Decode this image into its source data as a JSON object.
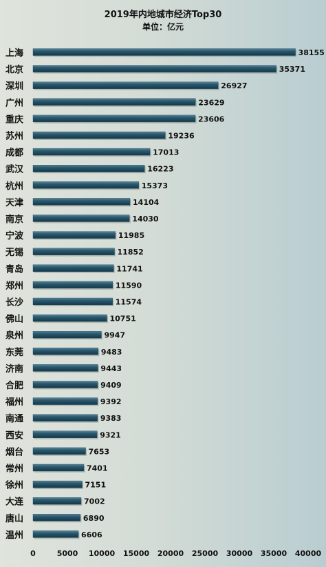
{
  "chart_data": {
    "type": "bar",
    "orientation": "horizontal",
    "title": "2019年内地城市经济Top30",
    "subtitle": "单位：亿元",
    "xlabel": "",
    "ylabel": "",
    "xlim": [
      0,
      40000
    ],
    "x_ticks": [
      "0",
      "5000",
      "10000",
      "15000",
      "20000",
      "25000",
      "30000",
      "35000",
      "40000"
    ],
    "grid": false,
    "legend": "none",
    "bar_color": "#1f4e63",
    "categories": [
      "上海",
      "北京",
      "深圳",
      "广州",
      "重庆",
      "苏州",
      "成都",
      "武汉",
      "杭州",
      "天津",
      "南京",
      "宁波",
      "无锡",
      "青岛",
      "郑州",
      "长沙",
      "佛山",
      "泉州",
      "东莞",
      "济南",
      "合肥",
      "福州",
      "南通",
      "西安",
      "烟台",
      "常州",
      "徐州",
      "大连",
      "唐山",
      "温州"
    ],
    "values": [
      38155,
      35371,
      26927,
      23629,
      23606,
      19236,
      17013,
      16223,
      15373,
      14104,
      14030,
      11985,
      11852,
      11741,
      11590,
      11574,
      10751,
      9947,
      9483,
      9443,
      9409,
      9392,
      9383,
      9321,
      7653,
      7401,
      7151,
      7002,
      6890,
      6606
    ]
  }
}
